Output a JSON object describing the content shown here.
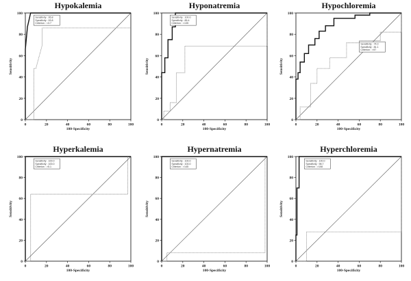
{
  "figure": {
    "xlabel": "100-Specificity",
    "ylabel": "Sensitivity",
    "ticks": [
      "0",
      "20",
      "40",
      "60",
      "80",
      "100"
    ]
  },
  "chart_data": [
    {
      "type": "line",
      "title": "Hypokalemia",
      "xlabel": "100-Specificity",
      "ylabel": "Sensitivity",
      "xlim": [
        0,
        100
      ],
      "ylim": [
        0,
        100
      ],
      "grid": false,
      "stats_box": [
        "Sensitivity : 95.8",
        "Specificity : 93.8",
        "Criterion : <3.7"
      ],
      "series": [
        {
          "style": "solid",
          "x": [
            0,
            0,
            2,
            5,
            100
          ],
          "y": [
            0,
            66,
            87,
            100,
            100
          ]
        },
        {
          "style": "dotted",
          "x": [
            0,
            8,
            8,
            10,
            16,
            16,
            100
          ],
          "y": [
            0,
            0,
            48,
            48,
            70,
            86,
            86
          ]
        }
      ]
    },
    {
      "type": "line",
      "title": "Hyponatremia",
      "xlabel": "100-Specificity",
      "ylabel": "Sensitivity",
      "xlim": [
        0,
        100
      ],
      "ylim": [
        0,
        100
      ],
      "grid": false,
      "stats_box": [
        "Sensitivity : 100.0",
        "Specificity : 85.4",
        "Criterion : <135"
      ],
      "series": [
        {
          "style": "solid",
          "x": [
            0,
            0,
            3,
            3,
            6,
            6,
            10,
            10,
            13,
            13,
            100
          ],
          "y": [
            0,
            44,
            44,
            58,
            58,
            75,
            75,
            87,
            87,
            100,
            100
          ]
        },
        {
          "style": "dotted",
          "x": [
            0,
            2,
            2,
            8,
            8,
            14,
            14,
            22,
            22,
            100,
            100
          ],
          "y": [
            0,
            0,
            8,
            8,
            16,
            16,
            44,
            44,
            69,
            69,
            100
          ]
        }
      ]
    },
    {
      "type": "line",
      "title": "Hypochloremia",
      "xlabel": "100-Specificity",
      "ylabel": "Sensitivity",
      "xlim": [
        0,
        100
      ],
      "ylim": [
        0,
        100
      ],
      "grid": false,
      "stats_box": [
        "Sensitivity : 74.0",
        "Specificity : 81.1",
        "Criterion : <97"
      ],
      "series": [
        {
          "style": "solid",
          "x": [
            0,
            0,
            2,
            2,
            4,
            4,
            8,
            8,
            12,
            12,
            18,
            18,
            22,
            22,
            28,
            28,
            36,
            36,
            56,
            56,
            70,
            70,
            100
          ],
          "y": [
            0,
            38,
            38,
            44,
            44,
            54,
            54,
            62,
            62,
            70,
            70,
            76,
            76,
            83,
            83,
            88,
            88,
            95,
            95,
            98,
            98,
            100,
            100
          ]
        },
        {
          "style": "dotted",
          "x": [
            0,
            4,
            4,
            14,
            14,
            20,
            20,
            32,
            32,
            48,
            48,
            60,
            60,
            80,
            80,
            100,
            100
          ],
          "y": [
            0,
            0,
            12,
            12,
            34,
            34,
            48,
            48,
            58,
            58,
            72,
            72,
            74,
            74,
            82,
            82,
            100
          ]
        }
      ]
    },
    {
      "type": "line",
      "title": "Hyperkalemia",
      "xlabel": "100-Specificity",
      "ylabel": "Sensitivity",
      "xlim": [
        0,
        100
      ],
      "ylim": [
        0,
        100
      ],
      "grid": false,
      "stats_box": [
        "Sensitivity : 100.0",
        "Specificity : 100.0",
        "Criterion : >5.1"
      ],
      "series": [
        {
          "style": "solid",
          "x": [
            0,
            0,
            100
          ],
          "y": [
            0,
            100,
            100
          ]
        },
        {
          "style": "dotted",
          "x": [
            0,
            5,
            5,
            97,
            97
          ],
          "y": [
            0,
            0,
            64,
            64,
            100
          ]
        }
      ]
    },
    {
      "type": "line",
      "title": "Hypernatremia",
      "xlabel": "100-Specificity",
      "ylabel": "Sensitivity",
      "xlim": [
        0,
        100
      ],
      "ylim": [
        0,
        100
      ],
      "grid": false,
      "stats_box": [
        "Sensitivity : 100.0",
        "Specificity : 100.0",
        "Criterion : >145"
      ],
      "series": [
        {
          "style": "solid",
          "x": [
            0,
            0,
            100
          ],
          "y": [
            0,
            100,
            100
          ]
        },
        {
          "style": "dotted",
          "x": [
            0,
            5,
            5,
            98,
            98
          ],
          "y": [
            0,
            0,
            8,
            8,
            100
          ]
        }
      ]
    },
    {
      "type": "line",
      "title": "Hyperchloremia",
      "xlabel": "100-Specificity",
      "ylabel": "Sensitivity",
      "xlim": [
        0,
        100
      ],
      "ylim": [
        0,
        100
      ],
      "grid": false,
      "stats_box": [
        "Sensitivity : 100.0",
        "Specificity : 98.7",
        "Criterion : >108"
      ],
      "series": [
        {
          "style": "solid",
          "x": [
            0,
            0,
            1,
            1,
            3,
            3,
            100
          ],
          "y": [
            0,
            25,
            25,
            70,
            70,
            100,
            100
          ]
        },
        {
          "style": "dotted",
          "x": [
            0,
            10,
            10,
            100,
            100
          ],
          "y": [
            0,
            0,
            28,
            28,
            100
          ]
        }
      ]
    }
  ]
}
